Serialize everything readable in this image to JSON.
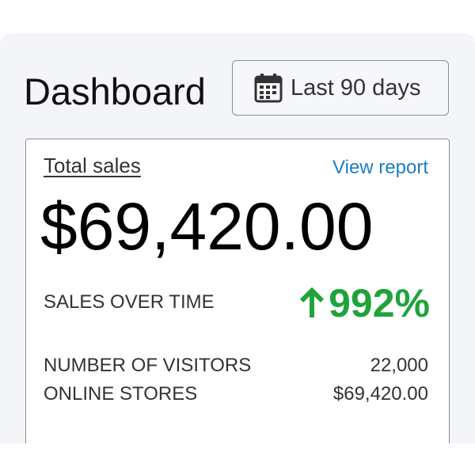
{
  "header": {
    "title": "Dashboard",
    "date_range": "Last 90 days"
  },
  "card": {
    "label": "Total sales",
    "link": "View report",
    "total": "$69,420.00",
    "trend_label": "SALES OVER TIME",
    "trend_value": "992%",
    "stats": [
      {
        "label": "NUMBER OF VISITORS",
        "value": "22,000"
      },
      {
        "label": "ONLINE STORES",
        "value": "$69,420.00"
      }
    ]
  }
}
